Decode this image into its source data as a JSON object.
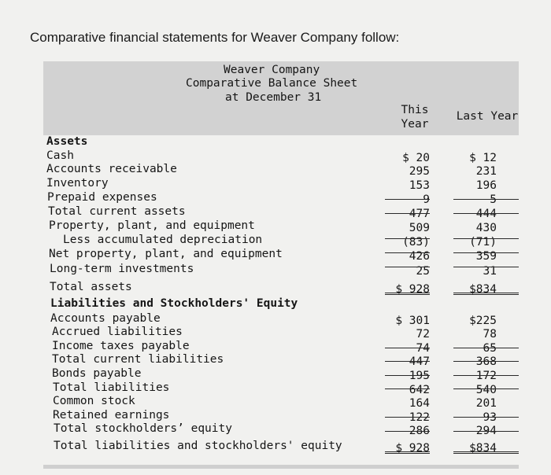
{
  "intro": "Comparative financial statements for Weaver Company follow:",
  "statement": {
    "company": "Weaver Company",
    "name": "Comparative Balance Sheet",
    "date": "at December 31"
  },
  "columns": {
    "this_year_1": "This",
    "this_year_2": "Year",
    "last_year": "Last Year"
  },
  "rows": [
    {
      "label": "Assets",
      "this": "",
      "last": ""
    },
    {
      "label": "Cash",
      "this": "$ 20",
      "last": "$ 12"
    },
    {
      "label": "Accounts receivable",
      "this": "295",
      "last": "231"
    },
    {
      "label": "Inventory",
      "this": "153",
      "last": "196"
    },
    {
      "label": "Prepaid expenses",
      "this": "9",
      "last": "5"
    },
    {
      "label": "Total current assets",
      "this": "477",
      "last": "444"
    },
    {
      "label": "Property, plant, and equipment",
      "this": "509",
      "last": "430"
    },
    {
      "label": "Less accumulated depreciation",
      "this": "(83)",
      "last": "(71)"
    },
    {
      "label": "Net property, plant, and equipment",
      "this": "426",
      "last": "359"
    },
    {
      "label": "Long-term investments",
      "this": "25",
      "last": "31"
    },
    {
      "label": "Total assets",
      "this": "$ 928",
      "last": "$834"
    },
    {
      "label": "Liabilities and Stockholders' Equity",
      "this": "",
      "last": ""
    },
    {
      "label": "Accounts payable",
      "this": "$ 301",
      "last": "$225"
    },
    {
      "label": "Accrued liabilities",
      "this": "72",
      "last": "78"
    },
    {
      "label": "Income taxes payable",
      "this": "74",
      "last": "65"
    },
    {
      "label": "Total current liabilities",
      "this": "447",
      "last": "368"
    },
    {
      "label": "Bonds payable",
      "this": "195",
      "last": "172"
    },
    {
      "label": "Total liabilities",
      "this": "642",
      "last": "540"
    },
    {
      "label": "Common stock",
      "this": "164",
      "last": "201"
    },
    {
      "label": "Retained earnings",
      "this": "122",
      "last": "93"
    },
    {
      "label": "Total stockholders’ equity",
      "this": "286",
      "last": "294"
    },
    {
      "label": "Total liabilities and stockholders' equity",
      "this": "$ 928",
      "last": "$834"
    }
  ]
}
